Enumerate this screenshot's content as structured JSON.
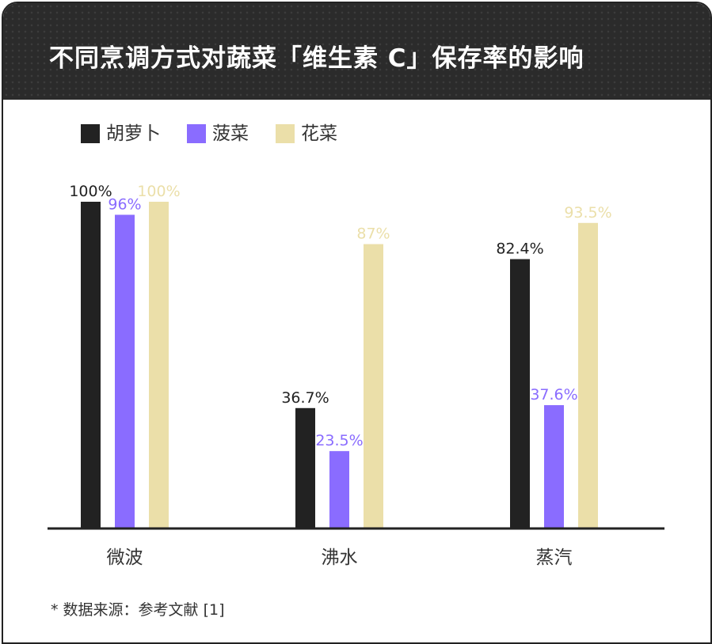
{
  "title": "不同烹调方式对蔬菜「维生素 C」保存率的影响",
  "source_note": "* 数据来源：参考文献 [1]",
  "chart_data": {
    "type": "bar",
    "title": "不同烹调方式对蔬菜「维生素 C」保存率的影响",
    "categories": [
      "微波",
      "沸水",
      "蒸汽"
    ],
    "series": [
      {
        "name": "胡萝卜",
        "values": [
          100,
          36.7,
          82.4
        ],
        "labels": [
          "100%",
          "36.7%",
          "82.4%"
        ],
        "color": "#222222",
        "label_color": "#222222"
      },
      {
        "name": "菠菜",
        "values": [
          96,
          23.5,
          37.6
        ],
        "labels": [
          "96%",
          "23.5%",
          "37.6%"
        ],
        "color": "#8a6cff",
        "label_color": "#8a6cff"
      },
      {
        "name": "花菜",
        "values": [
          100,
          87,
          93.5
        ],
        "labels": [
          "100%",
          "87%",
          "93.5%"
        ],
        "color": "#ebdfa9",
        "label_color": "#ebdfa9"
      }
    ],
    "xlabel": "",
    "ylabel": "",
    "ylim": [
      0,
      100
    ],
    "grid": false,
    "legend_position": "top-left",
    "axis_color": "#222222"
  },
  "colors": {
    "header_bg": "#2b2b2b",
    "frame": "#222222",
    "text": "#333333"
  }
}
